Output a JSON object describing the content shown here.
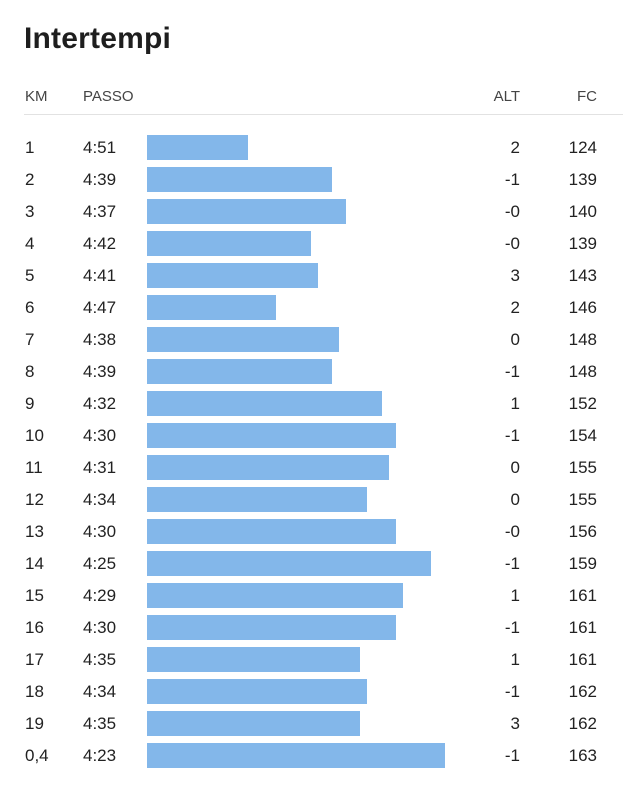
{
  "title": "Intertempi",
  "headers": {
    "km": "KM",
    "pace": "PASSO",
    "alt": "ALT",
    "hr": "FC"
  },
  "colors": {
    "bar": "#83b7ea",
    "text": "#222222",
    "divider": "#e2e2e2"
  },
  "splits": [
    {
      "km": "1",
      "pace": "4:51",
      "alt": "2",
      "hr": "124"
    },
    {
      "km": "2",
      "pace": "4:39",
      "alt": "-1",
      "hr": "139"
    },
    {
      "km": "3",
      "pace": "4:37",
      "alt": "-0",
      "hr": "140"
    },
    {
      "km": "4",
      "pace": "4:42",
      "alt": "-0",
      "hr": "139"
    },
    {
      "km": "5",
      "pace": "4:41",
      "alt": "3",
      "hr": "143"
    },
    {
      "km": "6",
      "pace": "4:47",
      "alt": "2",
      "hr": "146"
    },
    {
      "km": "7",
      "pace": "4:38",
      "alt": "0",
      "hr": "148"
    },
    {
      "km": "8",
      "pace": "4:39",
      "alt": "-1",
      "hr": "148"
    },
    {
      "km": "9",
      "pace": "4:32",
      "alt": "1",
      "hr": "152"
    },
    {
      "km": "10",
      "pace": "4:30",
      "alt": "-1",
      "hr": "154"
    },
    {
      "km": "11",
      "pace": "4:31",
      "alt": "0",
      "hr": "155"
    },
    {
      "km": "12",
      "pace": "4:34",
      "alt": "0",
      "hr": "155"
    },
    {
      "km": "13",
      "pace": "4:30",
      "alt": "-0",
      "hr": "156"
    },
    {
      "km": "14",
      "pace": "4:25",
      "alt": "-1",
      "hr": "159"
    },
    {
      "km": "15",
      "pace": "4:29",
      "alt": "1",
      "hr": "161"
    },
    {
      "km": "16",
      "pace": "4:30",
      "alt": "-1",
      "hr": "161"
    },
    {
      "km": "17",
      "pace": "4:35",
      "alt": "1",
      "hr": "161"
    },
    {
      "km": "18",
      "pace": "4:34",
      "alt": "-1",
      "hr": "162"
    },
    {
      "km": "19",
      "pace": "4:35",
      "alt": "3",
      "hr": "162"
    },
    {
      "km": "0,4",
      "pace": "4:23",
      "alt": "-1",
      "hr": "163"
    }
  ]
}
